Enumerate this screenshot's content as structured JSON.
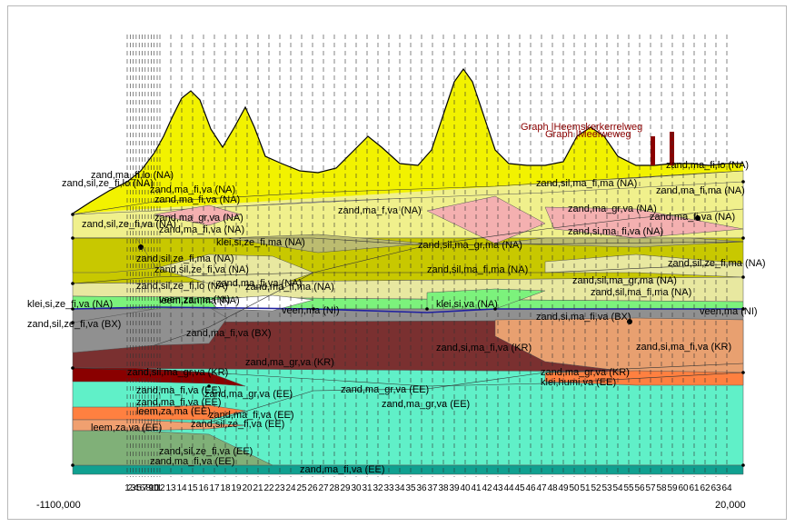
{
  "chart_data": {
    "type": "area",
    "title": "",
    "xlabel": "",
    "ylabel": "",
    "xlim": [
      -1100000,
      20000
    ],
    "x_axis_labels": [
      "-1100,000",
      "20,000"
    ],
    "verticals": [
      "1",
      "2",
      "3",
      "4",
      "5",
      "6",
      "7",
      "8",
      "9",
      "10",
      "11",
      "12",
      "13",
      "14",
      "15",
      "16",
      "17",
      "18",
      "19",
      "20",
      "21",
      "22",
      "23",
      "24",
      "25",
      "26",
      "27",
      "28",
      "29",
      "30",
      "31",
      "32",
      "33",
      "34",
      "35",
      "36",
      "37",
      "38",
      "39",
      "40",
      "41",
      "42",
      "43",
      "44",
      "45",
      "46",
      "47",
      "48",
      "49",
      "50",
      "51",
      "52",
      "53",
      "54",
      "55",
      "56",
      "57",
      "58",
      "59",
      "60",
      "61",
      "62",
      "63",
      "64"
    ],
    "annotations": [
      "Graph |Heemskerkerrelweg",
      "Graph |Meelweweg"
    ],
    "colors": {
      "surface": "#f2f200",
      "na_light": "#f0f08c",
      "na_olive": "#c8c800",
      "na_pink": "#f4b0b0",
      "na_khaki": "#bcbc70",
      "na_pale": "#e8e8a0",
      "ni_green": "#7cf27c",
      "bx_grey": "#909090",
      "kr_maroon": "#7a3030",
      "kr_peach": "#e8a070",
      "kr_red": "#8a0000",
      "ee_aqua": "#60f0c8",
      "ee_orange": "#ff8040",
      "ee_peach": "#f0a070",
      "ee_sage": "#80b078",
      "ee_teal": "#10a090"
    },
    "layers": [
      {
        "name": "zand,ma_fi,lo (NA)"
      },
      {
        "name": "zand,ma_fi,lo (NA)"
      },
      {
        "name": "zand,sil,ze_fi,lo (NA)"
      },
      {
        "name": "zand,ma_fi,va (NA)"
      },
      {
        "name": "zand,ma_fi,va (NA)"
      },
      {
        "name": "zand,sil,ma_fi,ma (NA)"
      },
      {
        "name": "zand,ma_fi,ma (NA)"
      },
      {
        "name": "zand,ma_gr,va (NA)"
      },
      {
        "name": "zand,ma_f,va (NA)"
      },
      {
        "name": "zand,sil,ze_fi,va (NA)"
      },
      {
        "name": "zand,ma_fi,va (NA)"
      },
      {
        "name": "zand,ma_gr,va (NA)"
      },
      {
        "name": "zand,ma_fi,va (NA)"
      },
      {
        "name": "zand,si,ma_fi,va (NA)"
      },
      {
        "name": "klei,si,ze_fi,ma (NA)"
      },
      {
        "name": "zand,sil,ze_fi,ma (NA)"
      },
      {
        "name": "zand,sil,ma_gr,ma (NA)"
      },
      {
        "name": "zand,sil,ze_fi,va (NA)"
      },
      {
        "name": "zand,ma_fi,va (NA)"
      },
      {
        "name": "zand,sil,ma_fi,ma (NA)"
      },
      {
        "name": "zand,sil,ze_fi,ma (NA)"
      },
      {
        "name": "zand,sil,ze_fi,lo (NA)"
      },
      {
        "name": "zand,ma_fi,ma (NA)"
      },
      {
        "name": "zand,sil,ma_gr,ma (NA)"
      },
      {
        "name": "zand,sil,ma_fi,ma (NA)"
      },
      {
        "name": "leem,zan,ma (NA)"
      },
      {
        "name": "klei,si,ze_fi,va (NA)"
      },
      {
        "name": "klei,si,va (NA)"
      },
      {
        "name": "veen,za,ma (NI)"
      },
      {
        "name": "veen,ma (NI)"
      },
      {
        "name": "veen,ma (NI)"
      },
      {
        "name": "zand,sil,ze_fi,va (BX)"
      },
      {
        "name": "zand,si,ma_fi,va (BX)"
      },
      {
        "name": "zand,ma_fi,va (BX)"
      },
      {
        "name": "zand,ma_gr,va (KR)"
      },
      {
        "name": "zand,si,ma_fi,va (KR)"
      },
      {
        "name": "zand,si,ma_fi,va (KR)"
      },
      {
        "name": "zand,sil,ma_gr,va (KR)"
      },
      {
        "name": "zand,ma_gr,va (KR)"
      },
      {
        "name": "klei,humi,va (EE)"
      },
      {
        "name": "zand,ma_gr,va (EE)"
      },
      {
        "name": "zand,ma_fi,va (EE)"
      },
      {
        "name": "zand,ma_fi,va (EE)"
      },
      {
        "name": "zand,ma_gr,va (EE)"
      },
      {
        "name": "zand,ma_gr,va (EE)"
      },
      {
        "name": "zand,ma_fi,va (EE)"
      },
      {
        "name": "leem,za,ma (EE)"
      },
      {
        "name": "leem,za,va (EE)"
      },
      {
        "name": "zand,sil,ze_fi,va (EE)"
      },
      {
        "name": "zand,sil,ze_fi,va (EE)"
      },
      {
        "name": "zand,ma_fi,va (EE)"
      },
      {
        "name": "zand,ma_fi,va (EE)"
      }
    ]
  }
}
